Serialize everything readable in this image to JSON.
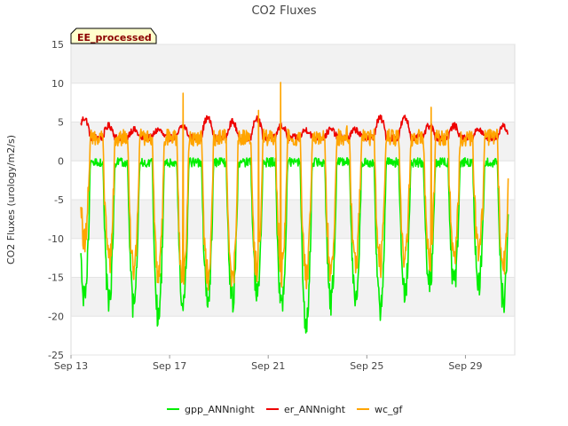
{
  "chart_data": {
    "type": "line",
    "title": "CO2 Fluxes",
    "xlabel": "",
    "ylabel": "CO2 Fluxes (urology/m2/s)",
    "badge": "EE_processed",
    "ylim": [
      -25,
      15
    ],
    "yticks": [
      -25,
      -20,
      -15,
      -10,
      -5,
      0,
      5,
      10,
      15
    ],
    "xlim_day": [
      13,
      31
    ],
    "xticks": [
      {
        "day": 13,
        "label": "Sep 13"
      },
      {
        "day": 17,
        "label": "Sep 17"
      },
      {
        "day": 21,
        "label": "Sep 21"
      },
      {
        "day": 25,
        "label": "Sep 25"
      },
      {
        "day": 29,
        "label": "Sep 29"
      }
    ],
    "bands": [
      [
        -20,
        -15
      ],
      [
        -10,
        -5
      ],
      [
        0,
        5
      ],
      [
        10,
        15
      ]
    ],
    "days": [
      13,
      14,
      15,
      16,
      17,
      18,
      19,
      20,
      21,
      22,
      23,
      24,
      25,
      26,
      27,
      28,
      29,
      30
    ],
    "series": [
      {
        "name": "gpp_ANNnight",
        "color": "#00ee00",
        "night": 0,
        "day_min": [
          -18,
          -18,
          -19,
          -20,
          -19,
          -18,
          -18,
          -17,
          -19,
          -21,
          -18,
          -18,
          -19,
          -17,
          -16,
          -16,
          -16,
          -18
        ]
      },
      {
        "name": "er_ANNnight",
        "color": "#ee0000",
        "night": 3.0,
        "day_max": [
          5.5,
          4.5,
          4.0,
          4.0,
          4.5,
          5.5,
          5.0,
          5.5,
          4.5,
          4.0,
          4.0,
          4.0,
          5.5,
          5.5,
          4.5,
          4.5,
          4.0,
          4.5
        ]
      },
      {
        "name": "wc_gf",
        "color": "#ffa500",
        "night": 3.0,
        "day_min": [
          -10,
          -13,
          -14,
          -15,
          -16,
          -15,
          -15,
          -14,
          -14,
          -15,
          -14,
          -13,
          -13,
          -12,
          -13,
          -12,
          -12,
          -14
        ],
        "spikes": [
          {
            "x": 17.55,
            "y": 8.7
          },
          {
            "x": 20.6,
            "y": 6.5
          },
          {
            "x": 21.5,
            "y": 10.1
          },
          {
            "x": 24.2,
            "y": 4.5
          },
          {
            "x": 27.6,
            "y": 6.9
          }
        ]
      }
    ],
    "legend": [
      {
        "name": "gpp_ANNnight",
        "color": "#00ee00"
      },
      {
        "name": "er_ANNnight",
        "color": "#ee0000"
      },
      {
        "name": "wc_gf",
        "color": "#ffa500"
      }
    ],
    "legend_position": "bottom-center",
    "grid": true
  }
}
